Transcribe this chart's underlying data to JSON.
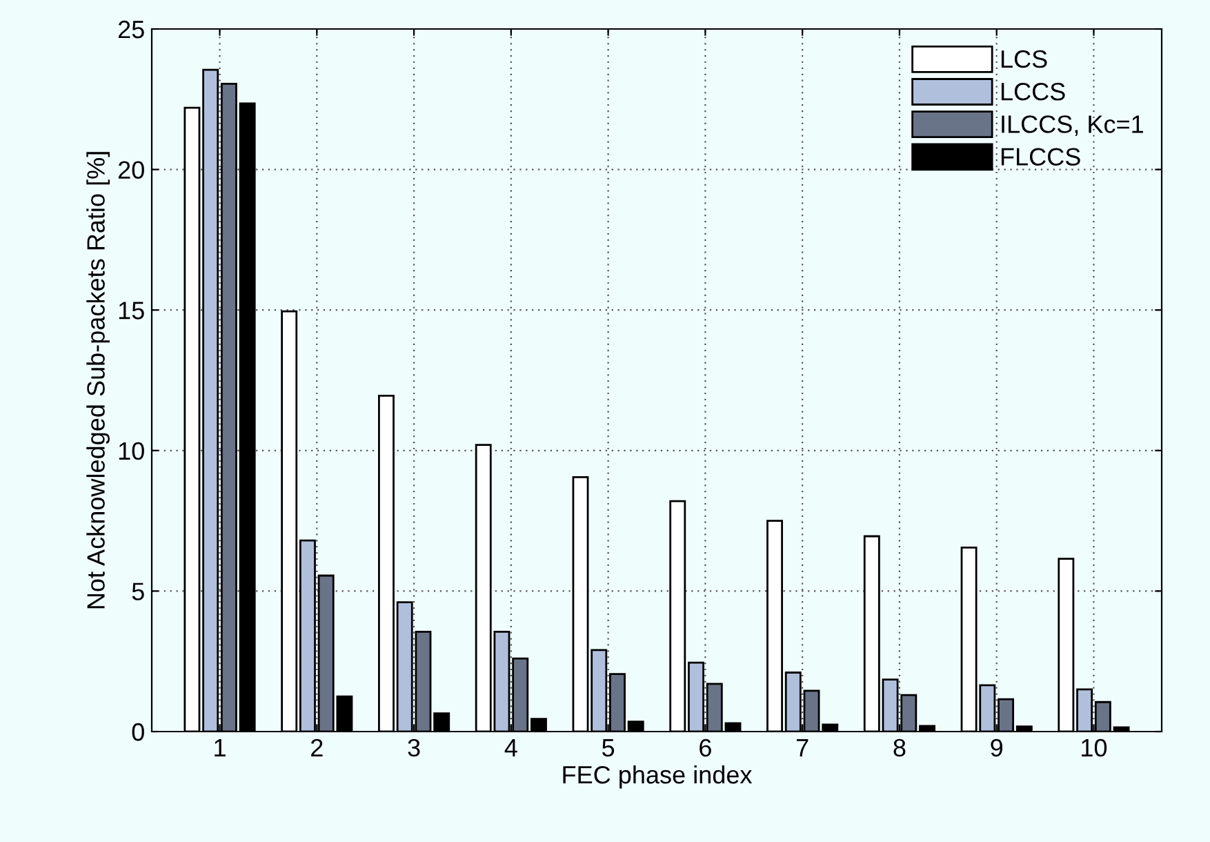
{
  "chart_data": {
    "type": "bar",
    "xlabel": "FEC phase index",
    "ylabel": "Not Acknowledged Sub-packets Ratio [%]",
    "categories": [
      "1",
      "2",
      "3",
      "4",
      "5",
      "6",
      "7",
      "8",
      "9",
      "10"
    ],
    "series": [
      {
        "name": "LCS",
        "color": "#ffffff",
        "values": [
          22.2,
          14.95,
          11.95,
          10.2,
          9.05,
          8.2,
          7.5,
          6.95,
          6.55,
          6.15
        ]
      },
      {
        "name": "LCCS",
        "color": "#b0c0dc",
        "values": [
          23.55,
          6.8,
          4.6,
          3.55,
          2.9,
          2.45,
          2.1,
          1.85,
          1.65,
          1.5
        ]
      },
      {
        "name": "ILCCS, Kc=1",
        "color": "#6a7488",
        "values": [
          23.05,
          5.55,
          3.55,
          2.6,
          2.05,
          1.7,
          1.45,
          1.3,
          1.15,
          1.05
        ]
      },
      {
        "name": "FLCCS",
        "color": "#000000",
        "values": [
          22.35,
          1.25,
          0.65,
          0.45,
          0.35,
          0.3,
          0.25,
          0.2,
          0.18,
          0.15
        ]
      }
    ],
    "ylim": [
      0,
      25
    ],
    "yticks": [
      0,
      5,
      10,
      15,
      20,
      25
    ],
    "grid": true,
    "legend": "top right"
  }
}
